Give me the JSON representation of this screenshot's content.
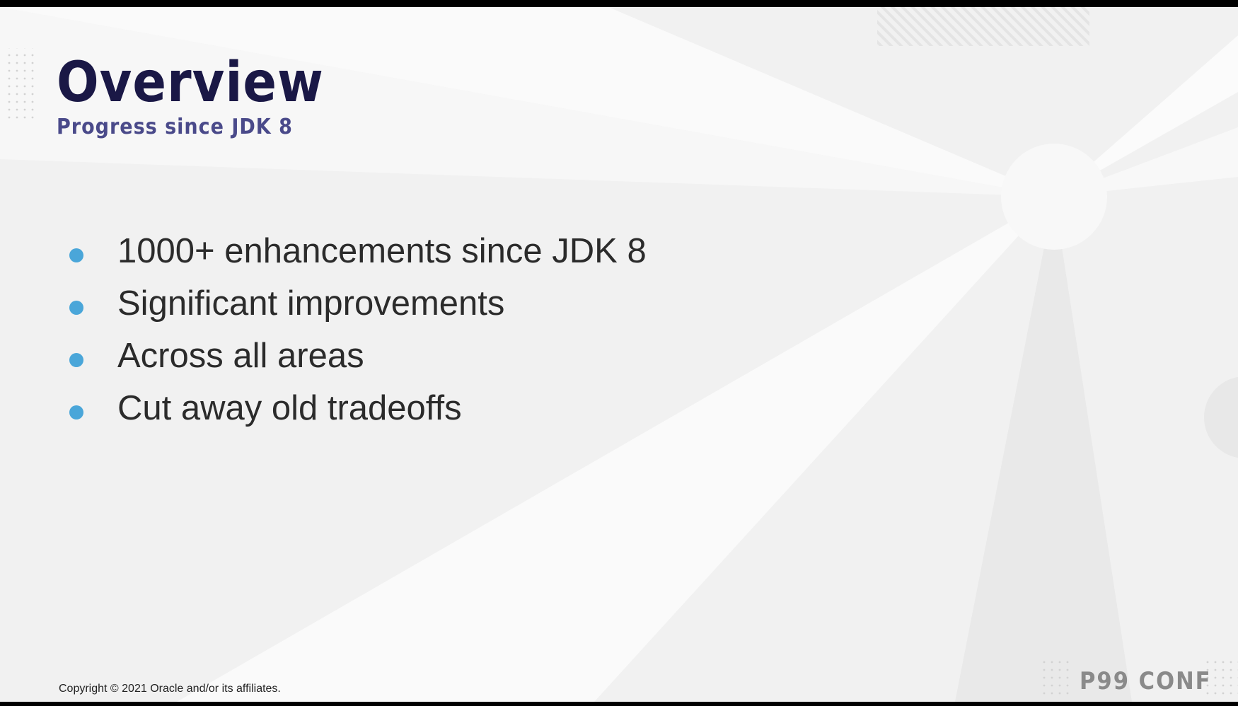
{
  "slide": {
    "title": "Overview",
    "subtitle": "Progress since JDK 8",
    "bullets": [
      "1000+ enhancements since JDK 8",
      "Significant improvements",
      "Across all areas",
      "Cut away old tradeoffs"
    ],
    "footer": {
      "copyright": "Copyright © 2021 Oracle and/or its affiliates.",
      "brand": "P99 CONF"
    }
  },
  "colors": {
    "title": "#1a1846",
    "subtitle": "#4a4a8a",
    "bullet_dot": "#4aa6d9",
    "background": "#f1f1f1"
  }
}
